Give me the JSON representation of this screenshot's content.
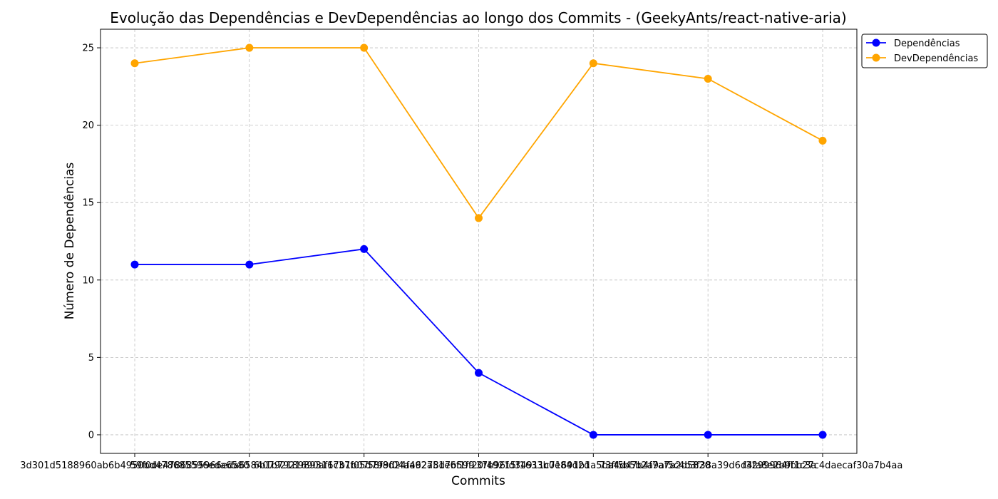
{
  "chart_data": {
    "type": "line",
    "title": "Evolução das Dependências e DevDependências ao longo dos Commits - (GeekyAnts/react-native-aria)",
    "xlabel": "Commits",
    "ylabel": "Número de Dependências",
    "categories": [
      "3d301d5188960ab6b4950bd478685596eda6580",
      "59f0de4786855966eda65840792189893167b1b07",
      "6b1b7921690af1c37f05d799f04aa92a51e6f1f9",
      "58f8d24f46278d7b59f20f49215f1633b0e84d2d",
      "37b96fd34911c71691b1a5ba4d47b4f7a7a2d5820",
      "73ff5b5b2a9af5c4b3f38a39d6d4fa8e2b9f1c3a",
      "f3299964fbb27c4daecaf30a7b4aa"
    ],
    "ylim": [
      -1.2,
      26.2
    ],
    "yticks": [
      0,
      5,
      10,
      15,
      20,
      25
    ],
    "grid": true,
    "legend_position": "top-right (outside)",
    "series": [
      {
        "name": "Dependências",
        "color": "#0000ff",
        "values": [
          11,
          11,
          12,
          4,
          0,
          0,
          0
        ]
      },
      {
        "name": "DevDependências",
        "color": "#ffa500",
        "values": [
          24,
          25,
          25,
          14,
          24,
          23,
          19
        ]
      }
    ]
  }
}
